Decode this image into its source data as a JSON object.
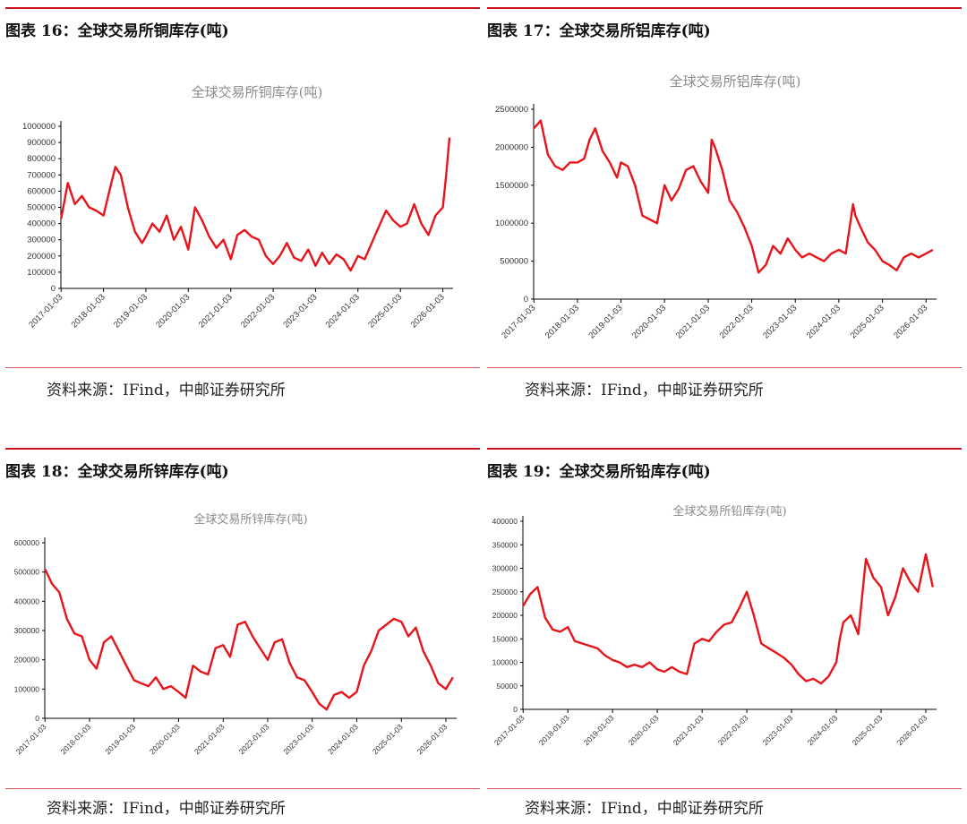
{
  "panels": [
    {
      "fig_title": "图表 16：全球交易所铜库存(吨)",
      "source": "资料来源：IFind，中邮证券研究所"
    },
    {
      "fig_title": "图表 17：全球交易所铝库存(吨)",
      "source": "资料来源：IFind，中邮证券研究所"
    },
    {
      "fig_title": "图表 18：全球交易所锌库存(吨)",
      "source": "资料来源：IFind，中邮证券研究所"
    },
    {
      "fig_title": "图表 19：全球交易所铅库存(吨)",
      "source": "资料来源：IFind，中邮证券研究所"
    }
  ],
  "colors": {
    "accent": "#c9131e",
    "line": "#e8141b"
  },
  "chart_data": [
    {
      "type": "line",
      "title": "全球交易所铜库存(吨)",
      "ylim": [
        0,
        1000000
      ],
      "yticks": [
        0,
        100000,
        200000,
        300000,
        400000,
        500000,
        600000,
        700000,
        800000,
        900000,
        1000000
      ],
      "xticks": [
        "2017-01-03",
        "2018-01-03",
        "2019-01-03",
        "2020-01-03",
        "2021-01-03",
        "2022-01-03",
        "2023-01-03",
        "2024-01-03",
        "2025-01-03",
        "2026-01-03"
      ],
      "xlim": [
        "2017-01-01",
        "2026-04-01"
      ],
      "x": [
        "2017-01-03",
        "2017-03-01",
        "2017-05-01",
        "2017-07-01",
        "2017-09-01",
        "2017-11-01",
        "2018-01-03",
        "2018-03-01",
        "2018-04-15",
        "2018-06-01",
        "2018-08-01",
        "2018-10-01",
        "2018-12-01",
        "2019-01-03",
        "2019-03-01",
        "2019-05-01",
        "2019-07-01",
        "2019-09-01",
        "2019-11-01",
        "2020-01-03",
        "2020-03-01",
        "2020-05-01",
        "2020-07-01",
        "2020-09-01",
        "2020-11-01",
        "2021-01-03",
        "2021-03-01",
        "2021-05-01",
        "2021-07-01",
        "2021-09-01",
        "2021-11-01",
        "2022-01-03",
        "2022-03-01",
        "2022-05-01",
        "2022-07-01",
        "2022-09-01",
        "2022-11-01",
        "2023-01-03",
        "2023-03-01",
        "2023-05-01",
        "2023-07-01",
        "2023-09-01",
        "2023-11-01",
        "2024-01-03",
        "2024-03-01",
        "2024-05-01",
        "2024-07-01",
        "2024-09-01",
        "2024-11-01",
        "2025-01-03",
        "2025-03-01",
        "2025-05-01",
        "2025-07-01",
        "2025-09-01",
        "2025-11-01",
        "2026-01-03",
        "2026-02-01",
        "2026-03-01"
      ],
      "values": [
        430000,
        650000,
        520000,
        570000,
        500000,
        480000,
        450000,
        620000,
        750000,
        700000,
        500000,
        350000,
        280000,
        320000,
        400000,
        350000,
        450000,
        300000,
        380000,
        240000,
        500000,
        420000,
        320000,
        250000,
        300000,
        180000,
        330000,
        360000,
        320000,
        300000,
        200000,
        150000,
        200000,
        280000,
        190000,
        170000,
        240000,
        140000,
        220000,
        150000,
        210000,
        180000,
        110000,
        200000,
        180000,
        280000,
        380000,
        480000,
        420000,
        380000,
        400000,
        520000,
        400000,
        330000,
        450000,
        500000,
        700000,
        930000
      ]
    },
    {
      "type": "line",
      "title": "全球交易所铝库存(吨)",
      "ylim": [
        0,
        2500000
      ],
      "yticks": [
        0,
        500000,
        1000000,
        1500000,
        2000000,
        2500000
      ],
      "xticks": [
        "2017-01-03",
        "2018-01-03",
        "2019-01-03",
        "2020-01-03",
        "2021-01-03",
        "2022-01-03",
        "2023-01-03",
        "2024-01-03",
        "2025-01-03",
        "2026-01-03"
      ],
      "xlim": [
        "2017-01-01",
        "2026-04-01"
      ],
      "x": [
        "2017-01-03",
        "2017-03-01",
        "2017-05-01",
        "2017-07-01",
        "2017-09-01",
        "2017-11-01",
        "2018-01-03",
        "2018-03-01",
        "2018-04-15",
        "2018-06-01",
        "2018-08-01",
        "2018-10-01",
        "2018-12-01",
        "2019-01-03",
        "2019-03-01",
        "2019-05-01",
        "2019-07-01",
        "2019-09-01",
        "2019-11-01",
        "2020-01-03",
        "2020-03-01",
        "2020-05-01",
        "2020-07-01",
        "2020-09-01",
        "2020-11-01",
        "2021-01-03",
        "2021-02-01",
        "2021-03-01",
        "2021-05-01",
        "2021-07-01",
        "2021-09-01",
        "2021-11-01",
        "2022-01-03",
        "2022-03-01",
        "2022-05-01",
        "2022-07-01",
        "2022-09-01",
        "2022-11-01",
        "2023-01-03",
        "2023-03-01",
        "2023-05-01",
        "2023-07-01",
        "2023-09-01",
        "2023-11-01",
        "2024-01-03",
        "2024-03-01",
        "2024-05-01",
        "2024-05-20",
        "2024-07-01",
        "2024-09-01",
        "2024-11-01",
        "2025-01-03",
        "2025-03-01",
        "2025-05-01",
        "2025-07-01",
        "2025-09-01",
        "2025-11-01",
        "2026-01-03",
        "2026-03-01"
      ],
      "values": [
        2250000,
        2350000,
        1900000,
        1750000,
        1700000,
        1800000,
        1800000,
        1850000,
        2100000,
        2250000,
        1950000,
        1800000,
        1600000,
        1800000,
        1750000,
        1500000,
        1100000,
        1050000,
        1000000,
        1500000,
        1300000,
        1450000,
        1700000,
        1750000,
        1550000,
        1400000,
        2100000,
        2000000,
        1700000,
        1300000,
        1150000,
        950000,
        700000,
        350000,
        450000,
        700000,
        600000,
        800000,
        650000,
        550000,
        600000,
        550000,
        500000,
        600000,
        650000,
        600000,
        1250000,
        1100000,
        950000,
        750000,
        650000,
        500000,
        450000,
        380000,
        550000,
        600000,
        550000,
        600000,
        650000
      ]
    },
    {
      "type": "line",
      "title": "全球交易所锌库存(吨)",
      "ylim": [
        0,
        600000
      ],
      "yticks": [
        0,
        100000,
        200000,
        300000,
        400000,
        500000,
        600000
      ],
      "xticks": [
        "2017-01-03",
        "2018-01-03",
        "2019-01-03",
        "2020-01-03",
        "2021-01-03",
        "2022-01-03",
        "2023-01-03",
        "2024-01-03",
        "2025-01-03",
        "2026-01-03"
      ],
      "xlim": [
        "2017-01-01",
        "2026-04-01"
      ],
      "x": [
        "2017-01-03",
        "2017-03-01",
        "2017-05-01",
        "2017-07-01",
        "2017-09-01",
        "2017-11-01",
        "2018-01-03",
        "2018-03-01",
        "2018-05-01",
        "2018-07-01",
        "2018-09-01",
        "2018-11-01",
        "2019-01-03",
        "2019-03-01",
        "2019-05-01",
        "2019-07-01",
        "2019-09-01",
        "2019-11-01",
        "2020-01-03",
        "2020-03-01",
        "2020-05-01",
        "2020-07-01",
        "2020-09-01",
        "2020-11-01",
        "2021-01-03",
        "2021-03-01",
        "2021-05-01",
        "2021-07-01",
        "2021-09-01",
        "2021-11-01",
        "2022-01-03",
        "2022-03-01",
        "2022-05-01",
        "2022-07-01",
        "2022-09-01",
        "2022-11-01",
        "2023-01-03",
        "2023-03-01",
        "2023-05-01",
        "2023-07-01",
        "2023-09-01",
        "2023-11-01",
        "2024-01-03",
        "2024-03-01",
        "2024-05-01",
        "2024-07-01",
        "2024-09-01",
        "2024-11-01",
        "2025-01-03",
        "2025-03-01",
        "2025-05-01",
        "2025-07-01",
        "2025-09-01",
        "2025-11-01",
        "2026-01-03",
        "2026-03-01"
      ],
      "values": [
        510000,
        460000,
        430000,
        340000,
        290000,
        280000,
        200000,
        170000,
        260000,
        280000,
        230000,
        180000,
        130000,
        120000,
        110000,
        140000,
        100000,
        110000,
        90000,
        70000,
        180000,
        160000,
        150000,
        240000,
        250000,
        210000,
        320000,
        330000,
        280000,
        240000,
        200000,
        260000,
        270000,
        190000,
        140000,
        130000,
        90000,
        50000,
        30000,
        80000,
        90000,
        70000,
        90000,
        180000,
        230000,
        300000,
        320000,
        340000,
        330000,
        280000,
        310000,
        230000,
        180000,
        120000,
        100000,
        140000
      ]
    },
    {
      "type": "line",
      "title": "全球交易所铅库存(吨)",
      "ylim": [
        0,
        400000
      ],
      "yticks": [
        0,
        50000,
        100000,
        150000,
        200000,
        250000,
        300000,
        350000,
        400000
      ],
      "xticks": [
        "2017-01-03",
        "2018-01-03",
        "2019-01-03",
        "2020-01-03",
        "2021-01-03",
        "2022-01-03",
        "2023-01-03",
        "2024-01-03",
        "2025-01-03",
        "2026-01-03"
      ],
      "xlim": [
        "2017-01-01",
        "2026-04-01"
      ],
      "x": [
        "2017-01-03",
        "2017-03-01",
        "2017-05-01",
        "2017-07-01",
        "2017-09-01",
        "2017-11-01",
        "2018-01-03",
        "2018-03-01",
        "2018-05-01",
        "2018-07-01",
        "2018-09-01",
        "2018-11-01",
        "2019-01-03",
        "2019-03-01",
        "2019-05-01",
        "2019-07-01",
        "2019-09-01",
        "2019-11-01",
        "2020-01-03",
        "2020-03-01",
        "2020-05-01",
        "2020-07-01",
        "2020-09-01",
        "2020-11-01",
        "2021-01-03",
        "2021-03-01",
        "2021-05-01",
        "2021-07-01",
        "2021-09-01",
        "2021-11-01",
        "2022-01-03",
        "2022-03-01",
        "2022-05-01",
        "2022-07-01",
        "2022-09-01",
        "2022-11-01",
        "2023-01-03",
        "2023-03-01",
        "2023-05-01",
        "2023-07-01",
        "2023-09-01",
        "2023-11-01",
        "2024-01-03",
        "2024-02-01",
        "2024-03-01",
        "2024-05-01",
        "2024-07-01",
        "2024-09-01",
        "2024-11-01",
        "2025-01-03",
        "2025-03-01",
        "2025-05-01",
        "2025-07-01",
        "2025-09-01",
        "2025-11-01",
        "2026-01-03",
        "2026-03-01"
      ],
      "values": [
        220000,
        245000,
        260000,
        195000,
        170000,
        165000,
        175000,
        145000,
        140000,
        135000,
        130000,
        115000,
        105000,
        100000,
        90000,
        95000,
        90000,
        100000,
        85000,
        80000,
        90000,
        80000,
        75000,
        140000,
        150000,
        145000,
        165000,
        180000,
        185000,
        215000,
        250000,
        200000,
        140000,
        130000,
        120000,
        110000,
        95000,
        75000,
        60000,
        65000,
        55000,
        70000,
        100000,
        150000,
        185000,
        200000,
        160000,
        320000,
        280000,
        260000,
        200000,
        240000,
        300000,
        270000,
        250000,
        330000,
        260000
      ]
    }
  ]
}
